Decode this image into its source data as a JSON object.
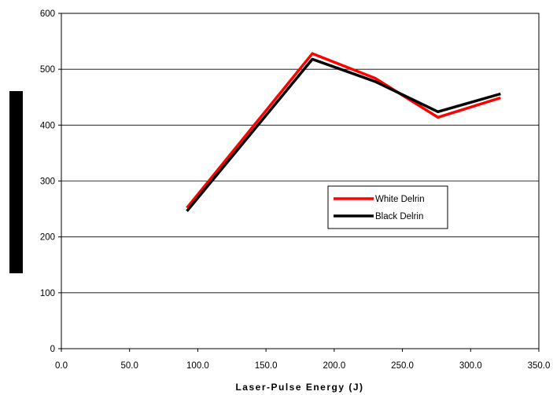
{
  "chart_data": {
    "type": "line",
    "title": "",
    "xlabel": "Laser-Pulse Energy (J)",
    "ylabel": "",
    "xlim": [
      0,
      350
    ],
    "ylim": [
      0,
      600
    ],
    "x_ticks": [
      "0.0",
      "50.0",
      "100.0",
      "150.0",
      "200.0",
      "250.0",
      "300.0",
      "350.0"
    ],
    "y_ticks": [
      "0",
      "100",
      "200",
      "300",
      "400",
      "500",
      "600"
    ],
    "grid": "horizontal",
    "legend_position": "center-right",
    "series": [
      {
        "name": "White Delrin",
        "color": "#ff0000",
        "x": [
          92,
          184,
          230,
          276,
          322
        ],
        "y": [
          252,
          528,
          484,
          414,
          449
        ]
      },
      {
        "name": "Black Delrin",
        "color": "#000000",
        "x": [
          92,
          184,
          230,
          276,
          322
        ],
        "y": [
          246,
          518,
          478,
          424,
          456
        ]
      }
    ]
  }
}
